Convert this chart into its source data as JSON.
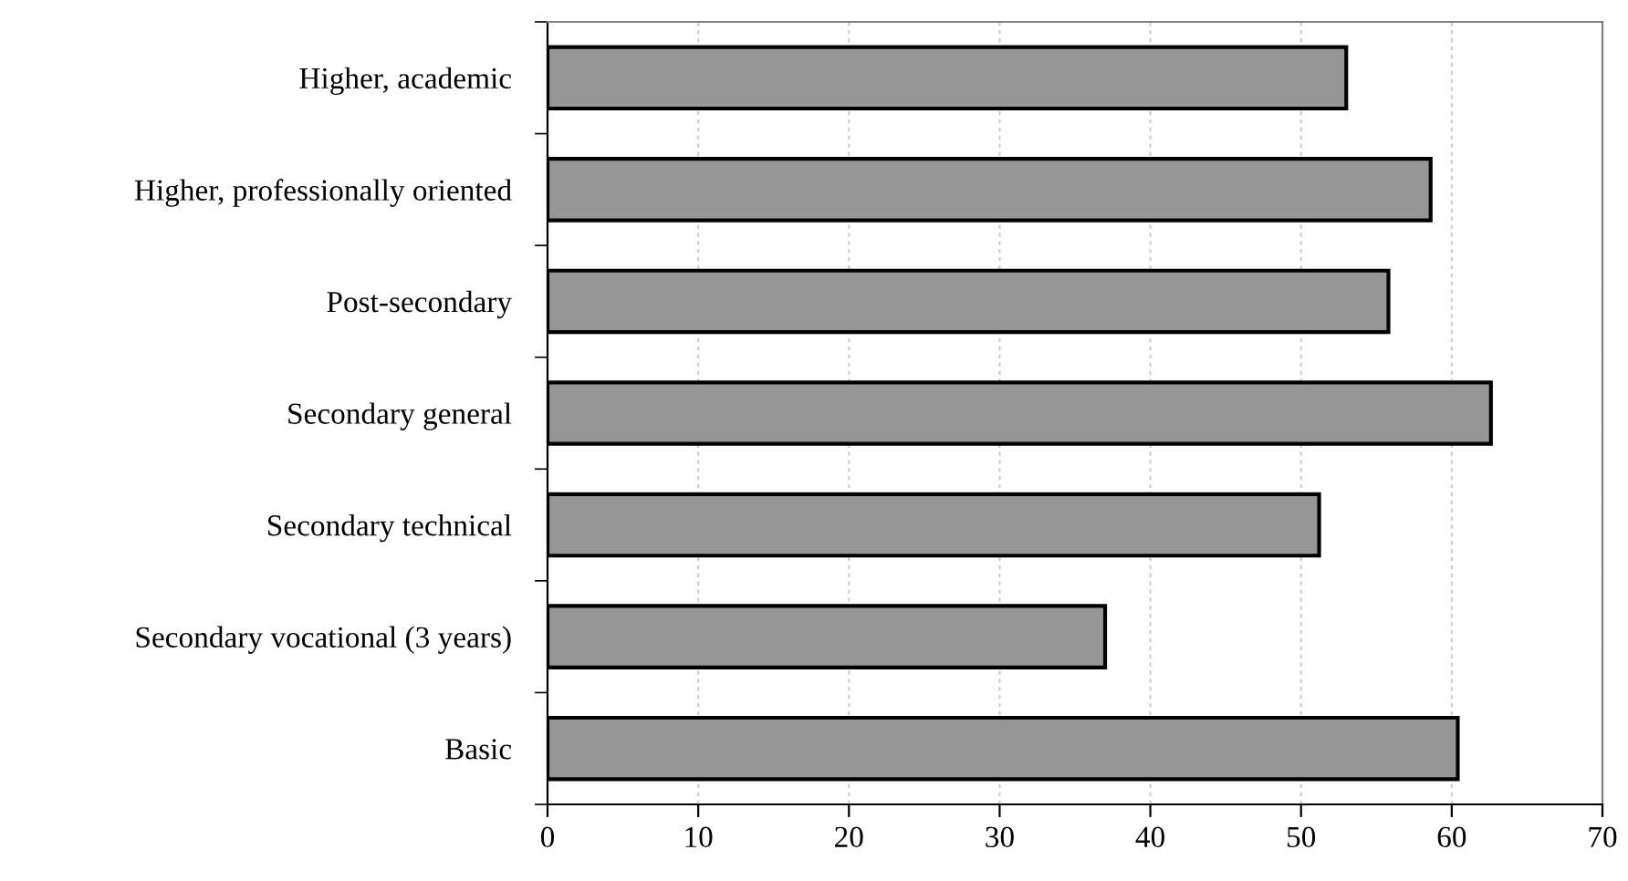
{
  "chart_data": {
    "type": "bar",
    "orientation": "horizontal",
    "categories": [
      "Higher, academic",
      "Higher, professionally oriented",
      "Post-secondary",
      "Secondary general",
      "Secondary technical",
      "Secondary vocational (3 years)",
      "Basic"
    ],
    "values": [
      53.0,
      58.6,
      55.8,
      62.6,
      51.2,
      37.0,
      60.4
    ],
    "color": "#969696",
    "xlim": [
      0,
      70
    ],
    "xticks": [
      0,
      10,
      20,
      30,
      40,
      50,
      60,
      70
    ],
    "grid": "x"
  }
}
